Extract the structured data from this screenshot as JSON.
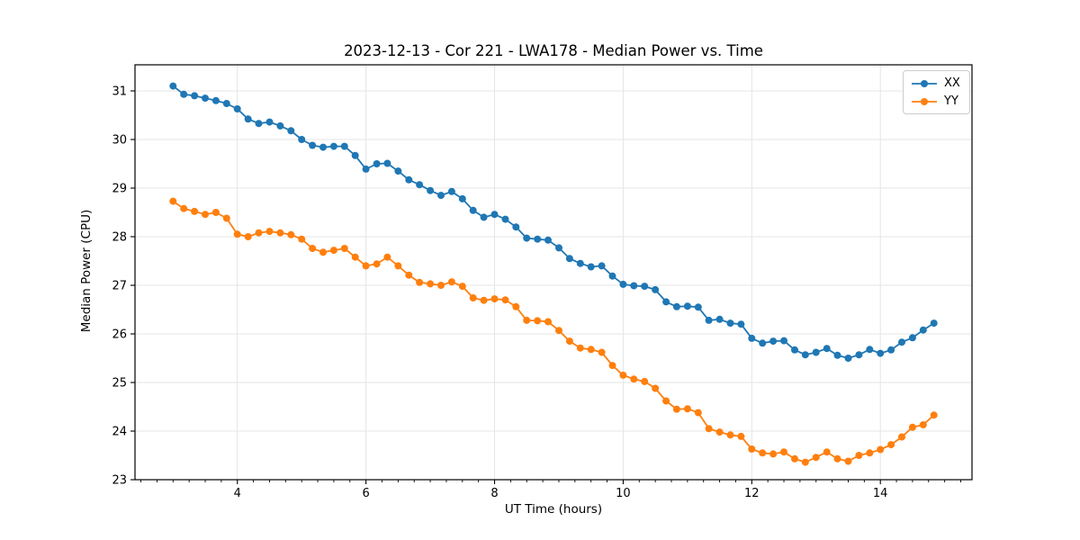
{
  "title": "2023-12-13 - Cor 221 - LWA178 - Median Power vs. Time",
  "chart_data": {
    "type": "line",
    "title": "2023-12-13 - Cor 221 - LWA178 - Median Power vs. Time",
    "xlabel": "UT Time (hours)",
    "ylabel": "Median Power (CPU)",
    "xlim": [
      2.408,
      15.425
    ],
    "ylim": [
      23.0,
      31.537
    ],
    "grid": true,
    "grid_color": "#e5e5e5",
    "spine_color": "#000000",
    "legend_position": "upper right",
    "x_tick_values": [
      4,
      6,
      8,
      10,
      12,
      14
    ],
    "x_tick_labels": [
      "4",
      "6",
      "8",
      "10",
      "12",
      "14"
    ],
    "x_minor_step": 0.25,
    "y_tick_values": [
      23,
      24,
      25,
      26,
      27,
      28,
      29,
      30,
      31
    ],
    "y_tick_labels": [
      "23",
      "24",
      "25",
      "26",
      "27",
      "28",
      "29",
      "30",
      "31"
    ],
    "x": [
      3.0,
      3.167,
      3.333,
      3.5,
      3.667,
      3.833,
      4.0,
      4.167,
      4.333,
      4.5,
      4.667,
      4.833,
      5.0,
      5.167,
      5.333,
      5.5,
      5.667,
      5.833,
      6.0,
      6.167,
      6.333,
      6.5,
      6.667,
      6.833,
      7.0,
      7.167,
      7.333,
      7.5,
      7.667,
      7.833,
      8.0,
      8.167,
      8.333,
      8.5,
      8.667,
      8.833,
      9.0,
      9.167,
      9.333,
      9.5,
      9.667,
      9.833,
      10.0,
      10.167,
      10.333,
      10.5,
      10.667,
      10.833,
      11.0,
      11.167,
      11.333,
      11.5,
      11.667,
      11.833,
      12.0,
      12.167,
      12.333,
      12.5,
      12.667,
      12.833,
      13.0,
      13.167,
      13.333,
      13.5,
      13.667,
      13.833,
      14.0,
      14.167,
      14.333,
      14.5,
      14.667,
      14.833
    ],
    "series": [
      {
        "name": "XX",
        "color": "#1f77b4",
        "values": [
          31.1,
          30.93,
          30.9,
          30.85,
          30.8,
          30.74,
          30.63,
          30.42,
          30.33,
          30.36,
          30.28,
          30.18,
          30.0,
          29.88,
          29.84,
          29.86,
          29.86,
          29.67,
          29.39,
          29.5,
          29.51,
          29.35,
          29.17,
          29.07,
          28.95,
          28.85,
          28.93,
          28.78,
          28.54,
          28.4,
          28.46,
          28.36,
          28.2,
          27.97,
          27.95,
          27.93,
          27.77,
          27.55,
          27.45,
          27.38,
          27.4,
          27.19,
          27.02,
          26.99,
          26.98,
          26.91,
          26.66,
          26.56,
          26.57,
          26.55,
          26.28,
          26.3,
          26.22,
          26.2,
          25.91,
          25.81,
          25.85,
          25.86,
          25.67,
          25.57,
          25.62,
          25.7,
          25.56,
          25.5,
          25.57,
          25.68,
          25.6,
          25.67,
          25.83,
          25.92,
          26.08,
          26.22
        ]
      },
      {
        "name": "YY",
        "color": "#ff7f0e",
        "values": [
          28.73,
          28.58,
          28.52,
          28.46,
          28.5,
          28.38,
          28.05,
          28.0,
          28.08,
          28.11,
          28.08,
          28.04,
          27.95,
          27.76,
          27.68,
          27.72,
          27.76,
          27.58,
          27.4,
          27.44,
          27.58,
          27.4,
          27.21,
          27.06,
          27.03,
          27.0,
          27.07,
          26.98,
          26.74,
          26.69,
          26.72,
          26.7,
          26.56,
          26.28,
          26.27,
          26.25,
          26.07,
          25.85,
          25.71,
          25.68,
          25.62,
          25.35,
          25.15,
          25.07,
          25.02,
          24.88,
          24.62,
          24.45,
          24.46,
          24.38,
          24.05,
          23.98,
          23.92,
          23.89,
          23.63,
          23.55,
          23.53,
          23.57,
          23.43,
          23.36,
          23.46,
          23.57,
          23.43,
          23.38,
          23.5,
          23.55,
          23.62,
          23.72,
          23.88,
          24.08,
          24.13,
          24.33
        ]
      }
    ]
  },
  "legend": {
    "items": [
      {
        "label": "XX",
        "color": "#1f77b4"
      },
      {
        "label": "YY",
        "color": "#ff7f0e"
      }
    ]
  }
}
